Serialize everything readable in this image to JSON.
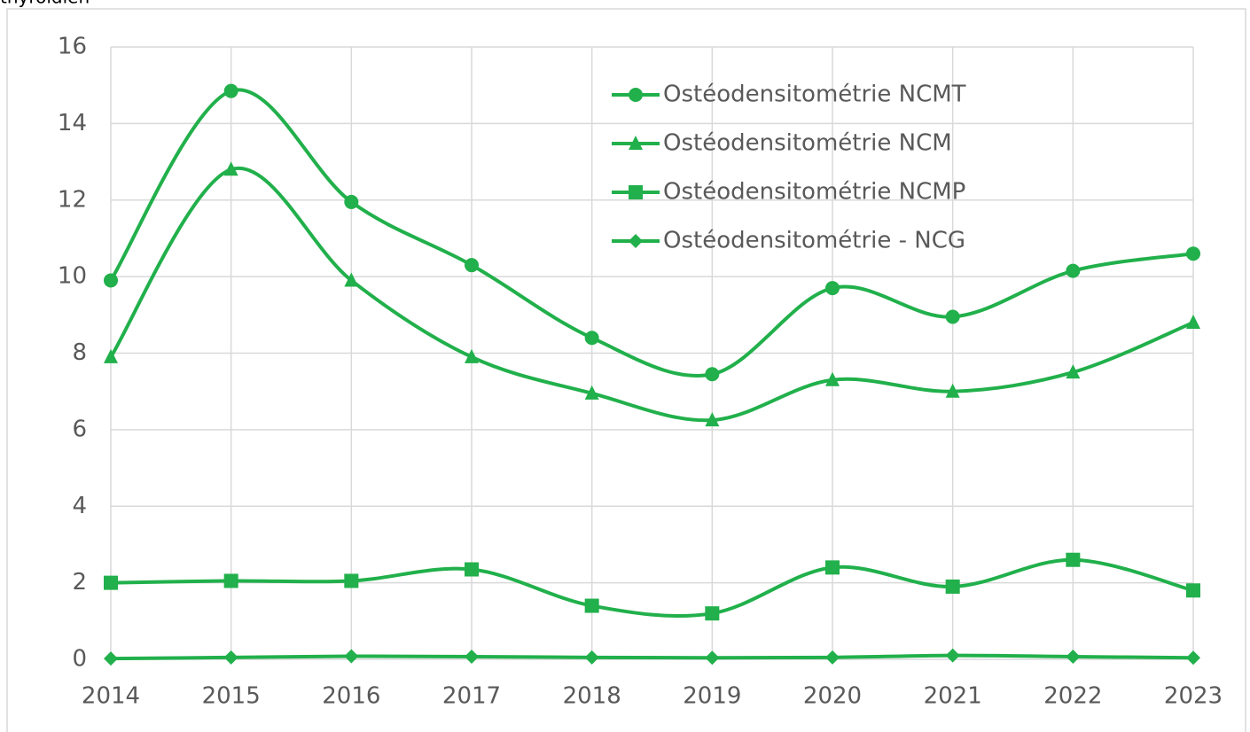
{
  "chart_data": {
    "type": "line",
    "title": "thyroïdien",
    "categories": [
      "2014",
      "2015",
      "2016",
      "2017",
      "2018",
      "2019",
      "2020",
      "2021",
      "2022",
      "2023"
    ],
    "series": [
      {
        "name": "Ostéodensitométrie NCMT",
        "color": "#21b04b",
        "marker": "circle",
        "values": [
          9.9,
          14.85,
          11.95,
          10.3,
          8.4,
          7.45,
          9.7,
          8.95,
          10.15,
          10.6
        ]
      },
      {
        "name": "Ostéodensitométrie NCM",
        "color": "#21b04b",
        "marker": "triangle",
        "values": [
          7.9,
          12.8,
          9.9,
          7.9,
          6.95,
          6.25,
          7.3,
          7.0,
          7.5,
          8.8
        ]
      },
      {
        "name": "Ostéodensitométrie NCMP",
        "color": "#21b04b",
        "marker": "square",
        "values": [
          2.0,
          2.05,
          2.05,
          2.35,
          1.4,
          1.2,
          2.4,
          1.9,
          2.6,
          1.8
        ]
      },
      {
        "name": "Ostéodensitométrie - NCG",
        "color": "#21b04b",
        "marker": "diamond",
        "values": [
          0.02,
          0.05,
          0.08,
          0.07,
          0.05,
          0.04,
          0.05,
          0.1,
          0.07,
          0.04
        ]
      }
    ],
    "ylim": [
      0,
      16
    ],
    "yticks": [
      0,
      2,
      4,
      6,
      8,
      10,
      12,
      14,
      16
    ],
    "grid": true,
    "legend": "top-right",
    "smooth": true
  }
}
